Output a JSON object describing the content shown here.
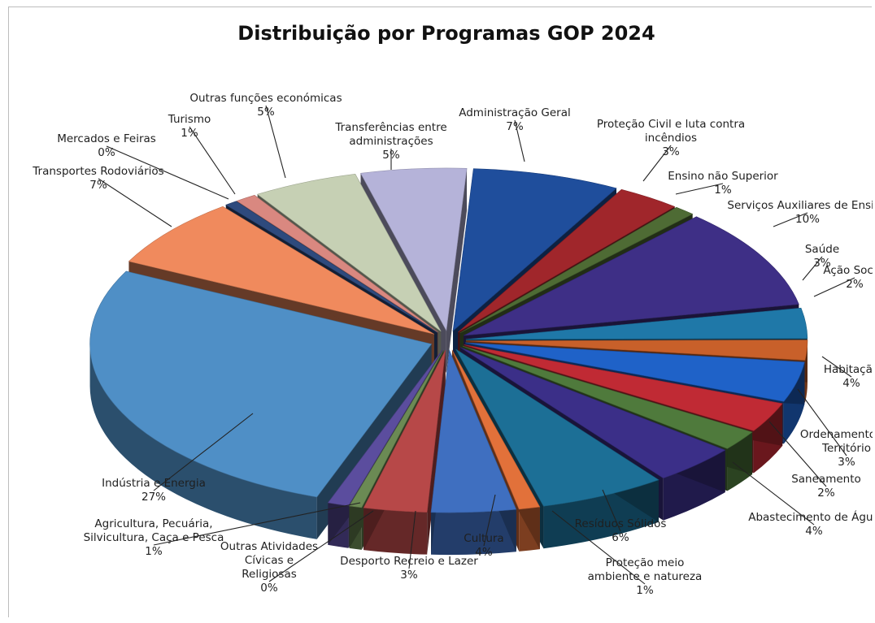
{
  "chart_data": {
    "type": "pie",
    "variant": "3d-exploded",
    "title": "Distribuição por Programas GOP 2024",
    "series": [
      {
        "name": "Administração Geral",
        "value": 7,
        "label": "7%",
        "color": "#1f4e9c"
      },
      {
        "name": "Proteção Civil e luta contra incêndios",
        "value": 3,
        "label": "3%",
        "color": "#a0262b"
      },
      {
        "name": "Ensino não Superior",
        "value": 1,
        "label": "1%",
        "color": "#4e6b34"
      },
      {
        "name": "Serviços Auxiliares de Ensino",
        "value": 10,
        "label": "10%",
        "color": "#3e2f86"
      },
      {
        "name": "Saúde",
        "value": 3,
        "label": "3%",
        "color": "#1f78a8"
      },
      {
        "name": "Ação Social",
        "value": 2,
        "label": "2%",
        "color": "#c8602a"
      },
      {
        "name": "Habitação",
        "value": 4,
        "label": "4%",
        "color": "#1f62c8"
      },
      {
        "name": "Ordenamento do Território",
        "value": 3,
        "label": "3%",
        "color": "#c02a34"
      },
      {
        "name": "Saneamento",
        "value": 2,
        "label": "2%",
        "color": "#4f7a3c"
      },
      {
        "name": "Abastecimento de Água",
        "value": 4,
        "label": "4%",
        "color": "#3b2f88"
      },
      {
        "name": "Resíduos Sólidos",
        "value": 6,
        "label": "6%",
        "color": "#1c6f96"
      },
      {
        "name": "Proteção meio ambiente e natureza",
        "value": 1,
        "label": "1%",
        "color": "#e2713a"
      },
      {
        "name": "Cultura",
        "value": 4,
        "label": "4%",
        "color": "#3f6fc0"
      },
      {
        "name": "Desporto Recreio e Lazer",
        "value": 3,
        "label": "3%",
        "color": "#b74848"
      },
      {
        "name": "Outras Atividades Cívicas e Religiosas",
        "value": 0,
        "label": "0%",
        "color": "#6b8a54"
      },
      {
        "name": "Agricultura, Pecuária, Silvicultura, Caça e Pesca",
        "value": 1,
        "label": "1%",
        "color": "#5b4d9e"
      },
      {
        "name": "Indústria e Energia",
        "value": 27,
        "label": "27%",
        "color": "#4f8fc6"
      },
      {
        "name": "Transportes Rodoviários",
        "value": 7,
        "label": "7%",
        "color": "#f08a5d"
      },
      {
        "name": "Mercados e Feiras",
        "value": 0,
        "label": "0%",
        "color": "#2e4a7d"
      },
      {
        "name": "Turismo",
        "value": 1,
        "label": "1%",
        "color": "#d98880"
      },
      {
        "name": "Outras funções económicas",
        "value": 5,
        "label": "5%",
        "color": "#c6d0b4"
      },
      {
        "name": "Transferências entre administrações",
        "value": 5,
        "label": "5%",
        "color": "#b5b3d9"
      }
    ]
  }
}
